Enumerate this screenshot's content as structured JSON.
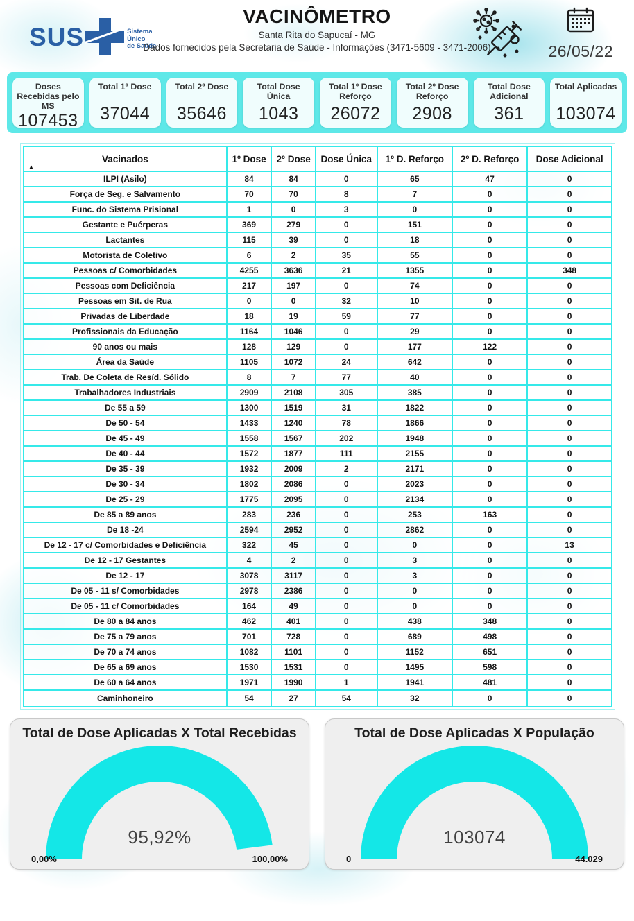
{
  "header": {
    "logo_text": "SUS",
    "logo_tagline": "Sistema\nÚnico\nde Saúde",
    "title": "VACINÔMETRO",
    "subtitle": "Santa Rita do Sapucaí - MG",
    "info": "Dados fornecidos pela Secretaria de Saúde - Informações (3471-5609 - 3471-2006)",
    "date": "26/05/22",
    "icons": [
      "syringe-virus-icon",
      "calendar-icon"
    ]
  },
  "stats": [
    {
      "label": "Doses Recebidas pelo MS",
      "value": "107453"
    },
    {
      "label": "Total 1º Dose",
      "value": "37044"
    },
    {
      "label": "Total 2º Dose",
      "value": "35646"
    },
    {
      "label": "Total Dose Única",
      "value": "1043"
    },
    {
      "label": "Total 1º Dose Reforço",
      "value": "26072"
    },
    {
      "label": "Total 2º Dose Reforço",
      "value": "2908"
    },
    {
      "label": "Total Dose Adicional",
      "value": "361"
    },
    {
      "label": "Total Aplicadas",
      "value": "103074"
    }
  ],
  "table": {
    "sort_indicator": "▲",
    "columns": [
      "Vacinados",
      "1º Dose",
      "2º Dose",
      "Dose Única",
      "1º D. Reforço",
      "2º D. Reforço",
      "Dose Adicional"
    ],
    "rows": [
      [
        "ILPI (Asilo)",
        "84",
        "84",
        "0",
        "65",
        "47",
        "0"
      ],
      [
        "Força de Seg. e Salvamento",
        "70",
        "70",
        "8",
        "7",
        "0",
        "0"
      ],
      [
        "Func. do Sistema Prisional",
        "1",
        "0",
        "3",
        "0",
        "0",
        "0"
      ],
      [
        "Gestante e Puérperas",
        "369",
        "279",
        "0",
        "151",
        "0",
        "0"
      ],
      [
        "Lactantes",
        "115",
        "39",
        "0",
        "18",
        "0",
        "0"
      ],
      [
        "Motorista de Coletivo",
        "6",
        "2",
        "35",
        "55",
        "0",
        "0"
      ],
      [
        "Pessoas c/ Comorbidades",
        "4255",
        "3636",
        "21",
        "1355",
        "0",
        "348"
      ],
      [
        "Pessoas com Deficiência",
        "217",
        "197",
        "0",
        "74",
        "0",
        "0"
      ],
      [
        "Pessoas em Sit. de Rua",
        "0",
        "0",
        "32",
        "10",
        "0",
        "0"
      ],
      [
        "Privadas de Liberdade",
        "18",
        "19",
        "59",
        "77",
        "0",
        "0"
      ],
      [
        "Profissionais da Educação",
        "1164",
        "1046",
        "0",
        "29",
        "0",
        "0"
      ],
      [
        "90 anos ou mais",
        "128",
        "129",
        "0",
        "177",
        "122",
        "0"
      ],
      [
        "Área da Saúde",
        "1105",
        "1072",
        "24",
        "642",
        "0",
        "0"
      ],
      [
        "Trab. De Coleta de Resíd. Sólido",
        "8",
        "7",
        "77",
        "40",
        "0",
        "0"
      ],
      [
        "Trabalhadores Industriais",
        "2909",
        "2108",
        "305",
        "385",
        "0",
        "0"
      ],
      [
        "De 55 a 59",
        "1300",
        "1519",
        "31",
        "1822",
        "0",
        "0"
      ],
      [
        "De 50 - 54",
        "1433",
        "1240",
        "78",
        "1866",
        "0",
        "0"
      ],
      [
        "De 45 - 49",
        "1558",
        "1567",
        "202",
        "1948",
        "0",
        "0"
      ],
      [
        "De 40 - 44",
        "1572",
        "1877",
        "111",
        "2155",
        "0",
        "0"
      ],
      [
        "De 35 - 39",
        "1932",
        "2009",
        "2",
        "2171",
        "0",
        "0"
      ],
      [
        "De 30 - 34",
        "1802",
        "2086",
        "0",
        "2023",
        "0",
        "0"
      ],
      [
        "De 25 - 29",
        "1775",
        "2095",
        "0",
        "2134",
        "0",
        "0"
      ],
      [
        "De 85 a 89 anos",
        "283",
        "236",
        "0",
        "253",
        "163",
        "0"
      ],
      [
        "De 18 -24",
        "2594",
        "2952",
        "0",
        "2862",
        "0",
        "0"
      ],
      [
        "De 12 - 17 c/ Comorbidades e Deficiência",
        "322",
        "45",
        "0",
        "0",
        "0",
        "13"
      ],
      [
        "De 12 - 17 Gestantes",
        "4",
        "2",
        "0",
        "3",
        "0",
        "0"
      ],
      [
        "De 12 - 17",
        "3078",
        "3117",
        "0",
        "3",
        "0",
        "0"
      ],
      [
        "De 05 - 11 s/ Comorbidades",
        "2978",
        "2386",
        "0",
        "0",
        "0",
        "0"
      ],
      [
        "De 05 - 11 c/ Comorbidades",
        "164",
        "49",
        "0",
        "0",
        "0",
        "0"
      ],
      [
        "De 80 a 84 anos",
        "462",
        "401",
        "0",
        "438",
        "348",
        "0"
      ],
      [
        "De 75 a 79 anos",
        "701",
        "728",
        "0",
        "689",
        "498",
        "0"
      ],
      [
        "De 70 a 74 anos",
        "1082",
        "1101",
        "0",
        "1152",
        "651",
        "0"
      ],
      [
        "De 65 a 69 anos",
        "1530",
        "1531",
        "0",
        "1495",
        "598",
        "0"
      ],
      [
        "De 60 a 64 anos",
        "1971",
        "1990",
        "1",
        "1941",
        "481",
        "0"
      ],
      [
        "Caminhoneiro",
        "54",
        "27",
        "54",
        "32",
        "0",
        "0"
      ]
    ]
  },
  "chart_data": [
    {
      "type": "gauge",
      "title": "Total de Dose Aplicadas X Total Recebidas",
      "value": 95.92,
      "min": 0,
      "max": 100,
      "value_label": "95,92%",
      "min_label": "0,00%",
      "max_label": "100,00%"
    },
    {
      "type": "gauge",
      "title": "Total de Dose Aplicadas X População",
      "value": 103074,
      "min": 0,
      "max": 44029,
      "value_label": "103074",
      "min_label": "0",
      "max_label": "44.029"
    }
  ],
  "colors": {
    "gauge_arc": "#14e7e7",
    "stats_panel": "#5ee8e8",
    "table_border": "#35e9e9",
    "sus_blue": "#2a5fa5"
  }
}
